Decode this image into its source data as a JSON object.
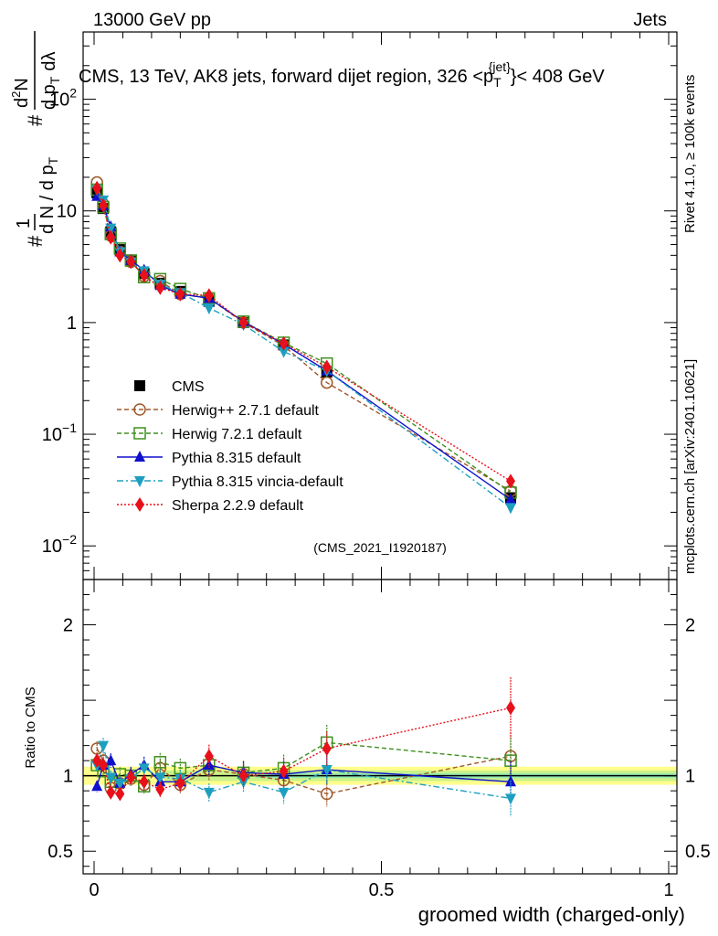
{
  "header": {
    "left": "13000 GeV pp",
    "right": "Jets",
    "rivet": "Rivet 4.1.0, ≥ 100k events",
    "mcplots": "mcplots.cern.ch [arXiv:2401.10621]",
    "watermark": "(CMS_2021_I1920187)"
  },
  "chart_data": {
    "type": "line",
    "title": "CMS, 13 TeV, AK8 jets, forward dijet region, 326 <p_T^{jet}< 408 GeV",
    "title_parts": {
      "main": "CMS, 13 TeV, AK8 jets, forward dijet region, 326 <p",
      "sup": "{jet}",
      "sub": "T",
      "end": "}< 408 GeV"
    },
    "ylabel_parts": {
      "n1": "1",
      "n2": "d",
      "n2sup": "2",
      "n3": "N",
      "d1": "d N / d p",
      "d1sub": "T",
      "d2": "d p",
      "d2sub": "T",
      "d3": "d",
      "d3b": "λ",
      "hash1": "#",
      "hash2": "#"
    },
    "xlabel": "groomed width (charged-only)",
    "ratio_ylabel": "Ratio to CMS",
    "xlim": [
      0,
      1
    ],
    "ylim_log": [
      0.005,
      400
    ],
    "ratio_ylim": [
      0.35,
      2.3
    ],
    "x_ticks": [
      "0",
      "0.5",
      "1"
    ],
    "x_tick_values": [
      0,
      0.5,
      1
    ],
    "y_ticks": [
      {
        "value": 0.01,
        "base": "10",
        "exp": "−2"
      },
      {
        "value": 0.1,
        "base": "10",
        "exp": "−1"
      },
      {
        "value": 1,
        "label": "1"
      },
      {
        "value": 10,
        "label": "10"
      },
      {
        "value": 100,
        "base": "10",
        "exp": "2"
      }
    ],
    "ratio_ticks": [
      "0.5",
      "1",
      "2"
    ],
    "ratio_tick_values": [
      0.5,
      1,
      2
    ],
    "x": [
      0.005,
      0.016,
      0.029,
      0.045,
      0.064,
      0.087,
      0.115,
      0.15,
      0.2,
      0.26,
      0.33,
      0.405,
      0.725
    ],
    "series": [
      {
        "name": "CMS",
        "marker": "square",
        "color": "#000000",
        "dash": "",
        "values": [
          14.5,
          10.5,
          6.5,
          4.5,
          3.55,
          2.75,
          2.25,
          1.9,
          1.55,
          1.0,
          0.63,
          0.36,
          0.027
        ],
        "ratio": [
          1,
          1,
          1,
          1,
          1,
          1,
          1,
          1,
          1,
          1,
          1,
          1,
          1
        ]
      },
      {
        "name": "Herwig++ 2.7.1 default",
        "marker": "circle-open",
        "color": "#a0582a",
        "dash": "5,3",
        "values": [
          18.0,
          11.5,
          6.0,
          4.3,
          3.5,
          2.6,
          2.35,
          1.8,
          1.65,
          1.0,
          0.62,
          0.29,
          0.031
        ],
        "ratio": [
          1.18,
          1.1,
          0.92,
          0.95,
          0.98,
          0.94,
          1.05,
          0.94,
          1.04,
          1.01,
          0.97,
          0.88,
          1.13
        ]
      },
      {
        "name": "Herwig 7.2.1 default",
        "marker": "square-open",
        "color": "#3f8f1f",
        "dash": "5,3",
        "values": [
          15.5,
          10.8,
          6.2,
          4.6,
          3.6,
          2.55,
          2.45,
          2.0,
          1.65,
          1.02,
          0.66,
          0.43,
          0.03
        ],
        "ratio": [
          1.07,
          1.03,
          0.96,
          1.01,
          1.0,
          0.93,
          1.09,
          1.05,
          1.07,
          1.02,
          1.05,
          1.22,
          1.1
        ]
      },
      {
        "name": "Pythia 8.315 default",
        "marker": "triangle-up",
        "color": "#1010cc",
        "dash": "",
        "values": [
          13.5,
          11.2,
          7.2,
          4.3,
          3.6,
          2.95,
          2.15,
          1.8,
          1.65,
          1.02,
          0.64,
          0.37,
          0.026
        ],
        "ratio": [
          0.93,
          1.07,
          1.1,
          0.95,
          1.01,
          1.07,
          0.96,
          0.96,
          1.07,
          1.02,
          1.01,
          1.04,
          0.96
        ]
      },
      {
        "name": "Pythia 8.315 vincia-default",
        "marker": "triangle-down",
        "color": "#1f9fbf",
        "dash": "7,3,2,3",
        "values": [
          15.5,
          12.5,
          7.0,
          4.3,
          3.45,
          2.9,
          2.2,
          1.85,
          1.35,
          0.96,
          0.55,
          0.37,
          0.022
        ],
        "ratio": [
          1.07,
          1.2,
          0.99,
          0.95,
          0.98,
          1.05,
          0.99,
          0.98,
          0.89,
          0.96,
          0.89,
          1.04,
          0.85
        ]
      },
      {
        "name": "Sherpa 2.2.9 default",
        "marker": "diamond",
        "color": "#e8101a",
        "dash": "2,2",
        "values": [
          16.0,
          11.2,
          5.8,
          4.0,
          3.5,
          2.65,
          2.05,
          1.8,
          1.75,
          1.0,
          0.65,
          0.4,
          0.038
        ],
        "ratio": [
          1.1,
          1.07,
          0.89,
          0.88,
          0.99,
          0.96,
          0.91,
          0.95,
          1.13,
          1.0,
          1.03,
          1.18,
          1.45
        ]
      }
    ]
  }
}
